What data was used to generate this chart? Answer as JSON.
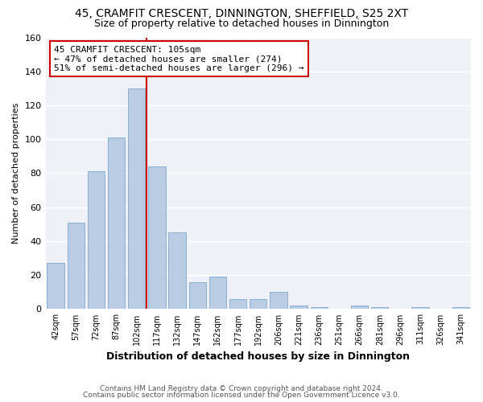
{
  "title": "45, CRAMFIT CRESCENT, DINNINGTON, SHEFFIELD, S25 2XT",
  "subtitle": "Size of property relative to detached houses in Dinnington",
  "xlabel": "Distribution of detached houses by size in Dinnington",
  "ylabel": "Number of detached properties",
  "categories": [
    "42sqm",
    "57sqm",
    "72sqm",
    "87sqm",
    "102sqm",
    "117sqm",
    "132sqm",
    "147sqm",
    "162sqm",
    "177sqm",
    "192sqm",
    "206sqm",
    "221sqm",
    "236sqm",
    "251sqm",
    "266sqm",
    "281sqm",
    "296sqm",
    "311sqm",
    "326sqm",
    "341sqm"
  ],
  "values": [
    27,
    51,
    81,
    101,
    130,
    84,
    45,
    16,
    19,
    6,
    6,
    10,
    2,
    1,
    0,
    2,
    1,
    0,
    1,
    0,
    1
  ],
  "bar_color": "#b8cce4",
  "bar_edge_color": "#8bafd4",
  "vline_x_index": 4,
  "vline_color": "#cc0000",
  "annotation_box_color": "#cc0000",
  "annotation_lines": [
    "45 CRAMFIT CRESCENT: 105sqm",
    "← 47% of detached houses are smaller (274)",
    "51% of semi-detached houses are larger (296) →"
  ],
  "ylim": [
    0,
    160
  ],
  "yticks": [
    0,
    20,
    40,
    60,
    80,
    100,
    120,
    140,
    160
  ],
  "footer_line1": "Contains HM Land Registry data © Crown copyright and database right 2024.",
  "footer_line2": "Contains public sector information licensed under the Open Government Licence v3.0.",
  "bg_color": "#eef2f8",
  "title_fontsize": 10,
  "subtitle_fontsize": 9,
  "bar_width": 0.85
}
